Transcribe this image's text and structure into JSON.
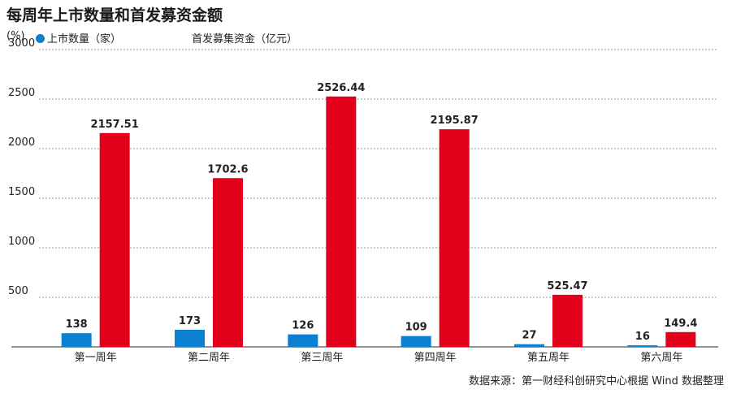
{
  "chart_data": {
    "type": "bar",
    "title": "每周年上市数量和首发募资金额",
    "y_unit_label": "(%)",
    "categories": [
      "第一周年",
      "第二周年",
      "第三周年",
      "第四周年",
      "第五周年",
      "第六周年"
    ],
    "series": [
      {
        "name": "上市数量（家）",
        "color": "#0b7fd0",
        "values": [
          138,
          173,
          126,
          109,
          27,
          16
        ],
        "labels": [
          "138",
          "173",
          "126",
          "109",
          "27",
          "16"
        ]
      },
      {
        "name": "首发募集资金（亿元）",
        "color": "#e2001a",
        "values": [
          2157.51,
          1702.6,
          2526.44,
          2195.87,
          525.47,
          149.4
        ],
        "labels": [
          "2157.51",
          "1702.6",
          "2526.44",
          "2195.87",
          "525.47",
          "149.4"
        ]
      }
    ],
    "ylim": [
      0,
      3000
    ],
    "yticks": [
      "500",
      "1000",
      "1500",
      "2000",
      "2500",
      "3000"
    ],
    "grid": true,
    "legend_position": "top-left",
    "source": "数据来源：第一财经科创研究中心根据 Wind 数据整理"
  }
}
